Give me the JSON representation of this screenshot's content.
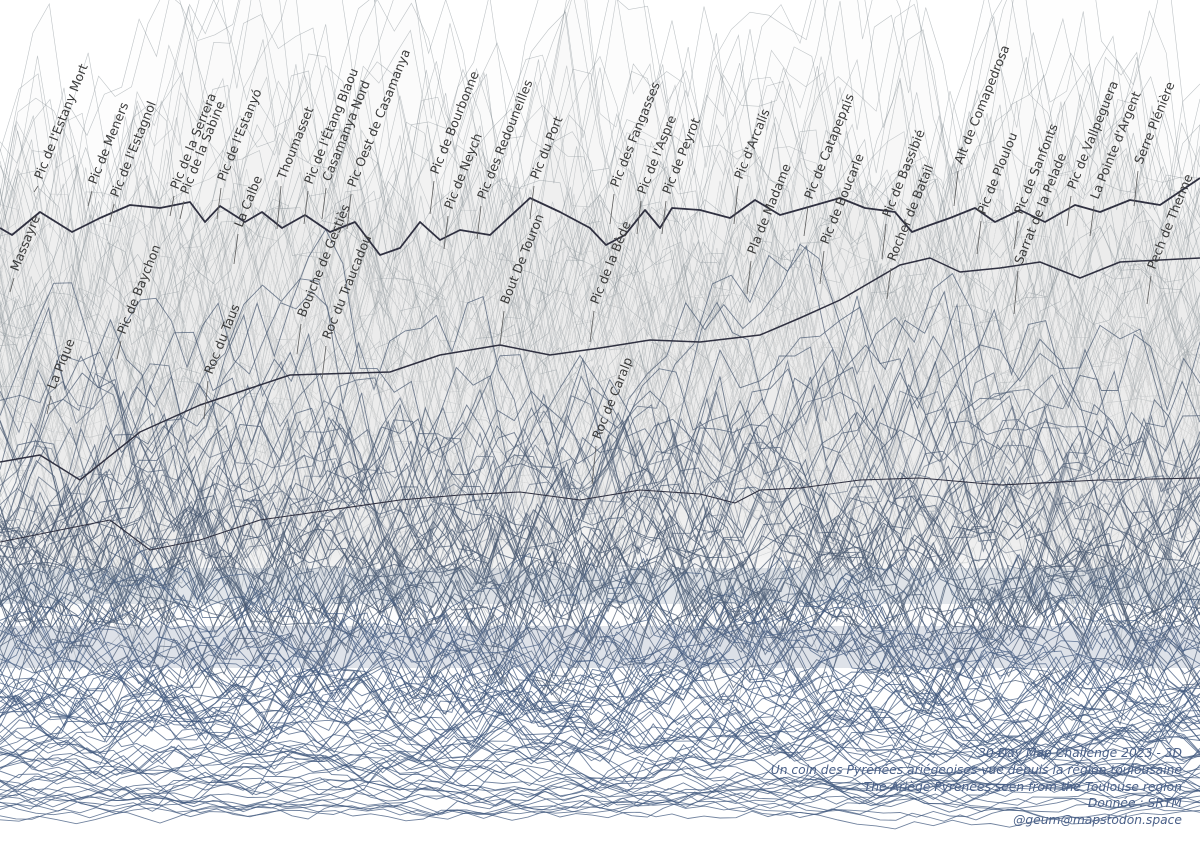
{
  "map": {
    "style": "ridgeline / joy plot of elevation profiles",
    "colors": {
      "background": "#ffffff",
      "far_lines": "#8b9499",
      "far_fill": "#f3f3ef",
      "mid_lines": "#4a5a72",
      "near_lines": "#41597f",
      "skyline": "#2f3040",
      "labels": "#3b3b3b",
      "credits": "#4a6088"
    },
    "peaks": [
      {
        "name": "Massayre"
      },
      {
        "name": "Pic de l'Estany Mort"
      },
      {
        "name": "La Pique"
      },
      {
        "name": "Pic de Meners"
      },
      {
        "name": "Pic de l'Estagnol"
      },
      {
        "name": "Pic de Baychon"
      },
      {
        "name": "Pic de la Serrera"
      },
      {
        "name": "Pic de la Sabine"
      },
      {
        "name": "Roc du Taus"
      },
      {
        "name": "Pic de l'Estanyó"
      },
      {
        "name": "La Calbe"
      },
      {
        "name": "Thoumasset"
      },
      {
        "name": "Bouiche de Gestiès"
      },
      {
        "name": "Pic de l'Étang Blaou"
      },
      {
        "name": "Casamanya Nord"
      },
      {
        "name": "Roc du Traucadou"
      },
      {
        "name": "Pic Oest de Casamanya"
      },
      {
        "name": "Pic de Bourbonne"
      },
      {
        "name": "Pic de Neych"
      },
      {
        "name": "Pic des Redouneilles"
      },
      {
        "name": "Bout De Touron"
      },
      {
        "name": "Pic du Port"
      },
      {
        "name": "Pic de la Bède"
      },
      {
        "name": "Roc de Caralp"
      },
      {
        "name": "Pic des Fangasses"
      },
      {
        "name": "Pic de l'Aspre"
      },
      {
        "name": "Pic de Peyrot"
      },
      {
        "name": "Pic d'Arcalís"
      },
      {
        "name": "Pla de Madame"
      },
      {
        "name": "Pic de Catapердis"
      },
      {
        "name": "Pic de Boucarle"
      },
      {
        "name": "Pic de Bassibié"
      },
      {
        "name": "Rocher de Batail"
      },
      {
        "name": "Alt de Comapedrosa"
      },
      {
        "name": "Pic de Ploulou"
      },
      {
        "name": "Pic de Sanfonts"
      },
      {
        "name": "Sarrat de la Pelade"
      },
      {
        "name": "Pic de Vallpeguera"
      },
      {
        "name": "La Pointe d'Argent"
      },
      {
        "name": "Serre Plénière"
      },
      {
        "name": "Pech de Therme"
      }
    ]
  },
  "credits": {
    "line1": "30 Day Map Challenge 2023 - 3D",
    "line2": "Un coin des Pyrénées ariégeoises vue depuis la région toulousaine",
    "line3": "The Ariège Pyrenees seen from the Toulouse region",
    "line4": "Donnée : SRTM",
    "line5": "@geum@mapstodon.space"
  }
}
